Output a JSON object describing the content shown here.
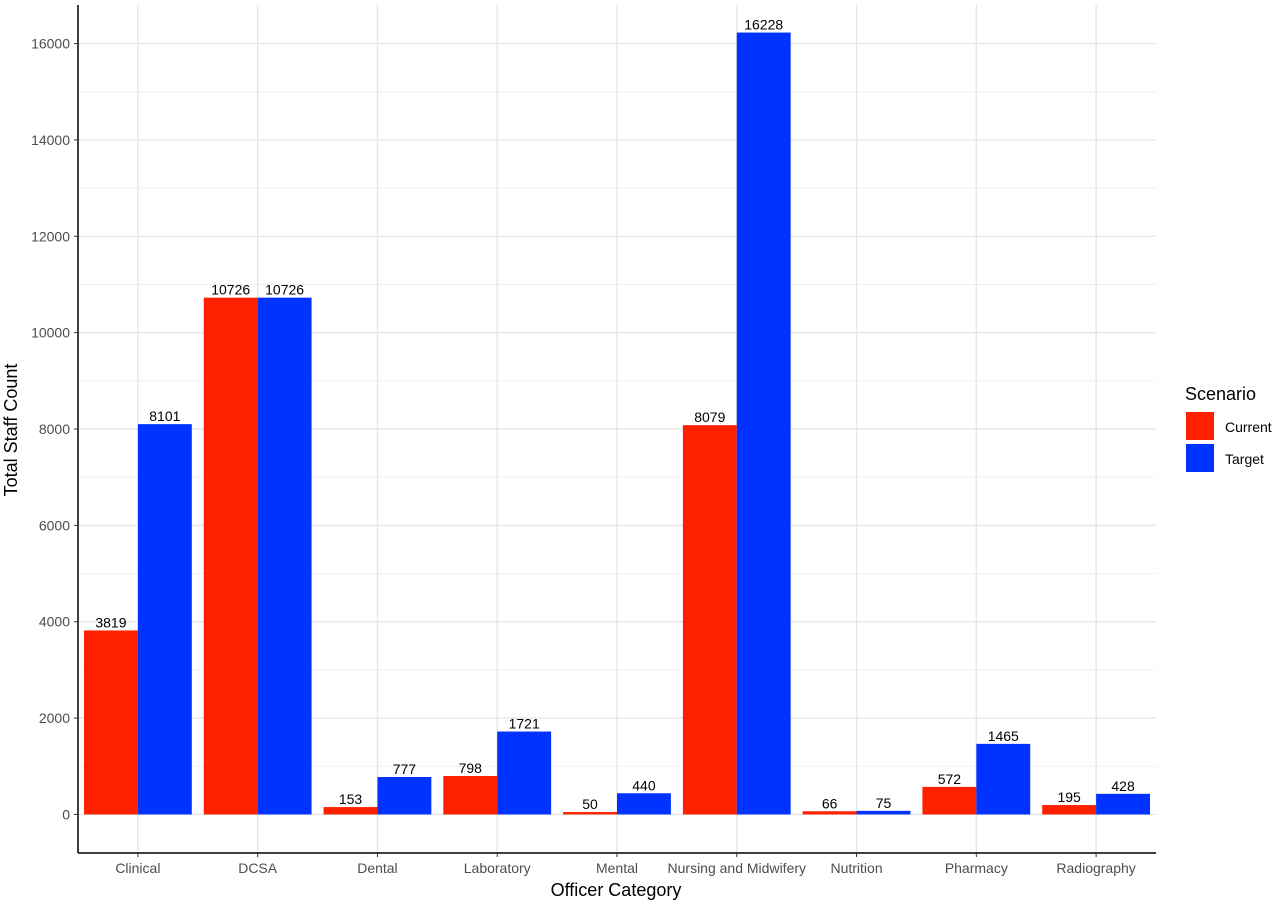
{
  "chart_data": {
    "type": "bar",
    "title": "",
    "xlabel": "Officer Category",
    "ylabel": "Total Staff Count",
    "categories": [
      "Clinical",
      "DCSA",
      "Dental",
      "Laboratory",
      "Mental",
      "Nursing and Midwifery",
      "Nutrition",
      "Pharmacy",
      "Radiography"
    ],
    "series": [
      {
        "name": "Current",
        "color": "#ff2000",
        "values": [
          3819,
          10726,
          153,
          798,
          50,
          8079,
          66,
          572,
          195
        ]
      },
      {
        "name": "Target",
        "color": "#0033ff",
        "values": [
          8101,
          10726,
          777,
          1721,
          440,
          16228,
          75,
          1465,
          428
        ]
      }
    ],
    "ylim": [
      -800,
      16800
    ],
    "yticks": [
      0,
      2000,
      4000,
      6000,
      8000,
      10000,
      12000,
      14000,
      16000
    ],
    "ytick_labels": [
      "0",
      "2000",
      "4000",
      "6000",
      "8000",
      "10000",
      "12000",
      "14000",
      "16000"
    ],
    "grid": true,
    "data_labels": true,
    "legend": {
      "title": "Scenario",
      "position": "right"
    }
  }
}
